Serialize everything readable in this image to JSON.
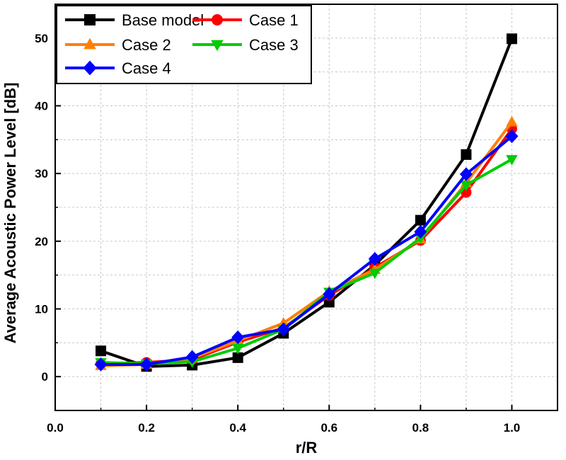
{
  "chart_data": {
    "type": "line",
    "title": "",
    "xlabel": "r/R",
    "ylabel": "Average Acoustic Power Level [dB]",
    "xlim": [
      0.0,
      1.1
    ],
    "ylim": [
      -5,
      55
    ],
    "x": [
      0.1,
      0.2,
      0.3,
      0.4,
      0.5,
      0.6,
      0.7,
      0.8,
      0.9,
      1.0
    ],
    "xticks": [
      "0.0",
      "0.2",
      "0.4",
      "0.6",
      "0.8",
      "1.0"
    ],
    "yticks": [
      "0",
      "10",
      "20",
      "30",
      "40",
      "50"
    ],
    "grid": true,
    "legend_position": "top-left",
    "series": [
      {
        "name": "Base model",
        "color": "#000000",
        "marker": "square",
        "values": [
          3.8,
          1.5,
          1.7,
          2.8,
          6.4,
          11.0,
          16.5,
          23.1,
          32.8,
          49.9
        ]
      },
      {
        "name": "Case 1",
        "color": "#ff0000",
        "marker": "circle",
        "values": [
          1.9,
          2.1,
          2.5,
          5.1,
          7.2,
          12.0,
          16.1,
          20.1,
          27.2,
          36.6
        ]
      },
      {
        "name": "Case 2",
        "color": "#ff8000",
        "marker": "triangle-up",
        "values": [
          1.6,
          1.8,
          2.7,
          5.3,
          7.9,
          12.6,
          15.8,
          20.3,
          28.6,
          37.6
        ]
      },
      {
        "name": "Case 3",
        "color": "#00cc00",
        "marker": "triangle-down",
        "values": [
          2.1,
          1.9,
          2.2,
          4.2,
          7.0,
          12.5,
          15.3,
          20.5,
          28.3,
          32.1
        ]
      },
      {
        "name": "Case 4",
        "color": "#0000ff",
        "marker": "diamond",
        "values": [
          1.8,
          1.8,
          2.9,
          5.8,
          7.0,
          12.2,
          17.4,
          21.4,
          29.9,
          35.5
        ]
      }
    ]
  }
}
